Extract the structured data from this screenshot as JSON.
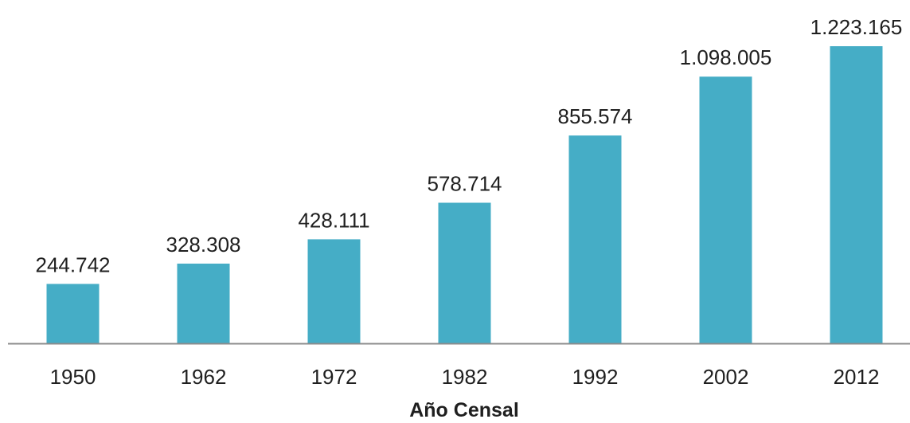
{
  "chart_data": {
    "type": "bar",
    "categories": [
      "1950",
      "1962",
      "1972",
      "1982",
      "1992",
      "2002",
      "2012"
    ],
    "values": [
      244742,
      328308,
      428111,
      578714,
      855574,
      1098005,
      1223165
    ],
    "value_labels": [
      "244.742",
      "328.308",
      "428.111",
      "578.714",
      "855.574",
      "1.098.005",
      "1.223.165"
    ],
    "title": "",
    "xlabel": "Año Censal",
    "ylabel": "",
    "ylim": [
      0,
      1223165
    ],
    "grid": false,
    "legend": "none",
    "bar_color": "#45adc6",
    "axis_color": "#8c8c8c"
  }
}
